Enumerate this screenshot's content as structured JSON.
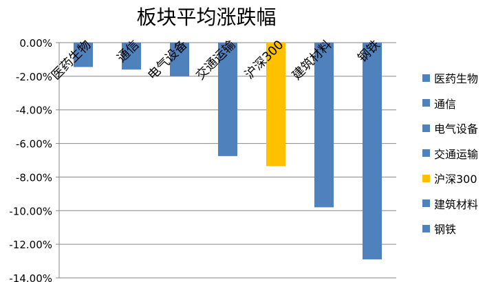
{
  "chart_data": {
    "type": "bar",
    "title": "板块平均涨跌幅",
    "categories": [
      "医药生物",
      "通信",
      "电气设备",
      "交通运输",
      "沪深300",
      "建筑材料",
      "钢铁"
    ],
    "values": [
      -1.45,
      -1.6,
      -2.0,
      -6.75,
      -7.35,
      -9.8,
      -12.9
    ],
    "value_format": "percent_2dp",
    "ylim": [
      -14,
      0
    ],
    "yticks": [
      0,
      -2,
      -4,
      -6,
      -8,
      -10,
      -12,
      -14
    ],
    "ytick_labels": [
      "0.00%",
      "-2.00%",
      "-4.00%",
      "-6.00%",
      "-8.00%",
      "-10.00%",
      "-12.00%",
      "-14.00%"
    ],
    "grid": true,
    "legend_position": "right",
    "colors": {
      "default_bar": "#4F81BD",
      "highlight_bar": "#FFC000",
      "highlight_category": "沪深300",
      "gridline": "#868686",
      "axis": "#868686"
    }
  }
}
